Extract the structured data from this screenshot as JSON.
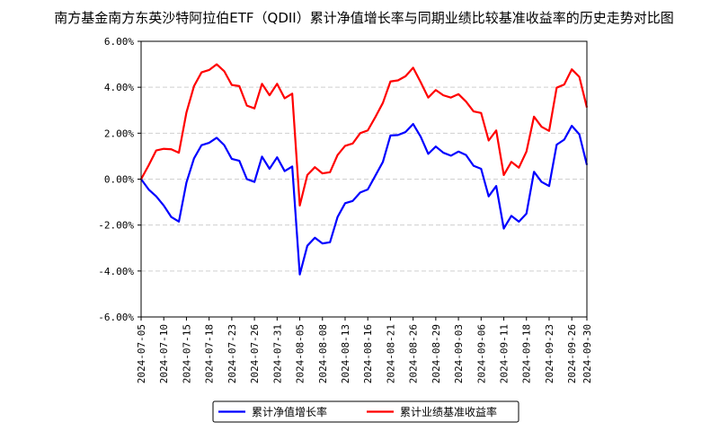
{
  "chart_data": {
    "type": "line",
    "title": "南方基金南方东英沙特阿拉伯ETF（QDII）累计净值增长率与同期业绩比较基准收益率的历史走势对比图",
    "xlabel": "",
    "ylabel": "",
    "ylim": [
      -6,
      6
    ],
    "yticks": [
      -6,
      -4,
      -2,
      0,
      2,
      4,
      6
    ],
    "ytick_labels": [
      "-6.00%",
      "-4.00%",
      "-2.00%",
      "0.00%",
      "2.00%",
      "4.00%",
      "6.00%"
    ],
    "xtick_labels": [
      "2024-07-05",
      "2024-07-10",
      "2024-07-15",
      "2024-07-18",
      "2024-07-23",
      "2024-07-26",
      "2024-07-31",
      "2024-08-05",
      "2024-08-08",
      "2024-08-13",
      "2024-08-16",
      "2024-08-21",
      "2024-08-26",
      "2024-08-29",
      "2024-09-03",
      "2024-09-06",
      "2024-09-11",
      "2024-09-18",
      "2024-09-23",
      "2024-09-26",
      "2024-09-30"
    ],
    "xtick_index": [
      0,
      3,
      6,
      9,
      12,
      15,
      18,
      21,
      24,
      27,
      30,
      33,
      36,
      39,
      42,
      45,
      48,
      51,
      54,
      57,
      59
    ],
    "grid": "horizontal dashed",
    "legend_position": "bottom-center",
    "series": [
      {
        "name": "累计净值增长率",
        "color": "#0000ff",
        "values": [
          0.0,
          -0.45,
          -0.75,
          -1.15,
          -1.65,
          -1.85,
          -0.15,
          0.9,
          1.48,
          1.58,
          1.8,
          1.48,
          0.88,
          0.8,
          0.0,
          -0.12,
          0.98,
          0.45,
          0.95,
          0.35,
          0.55,
          -4.15,
          -2.9,
          -2.55,
          -2.8,
          -2.75,
          -1.65,
          -1.05,
          -0.95,
          -0.58,
          -0.45,
          0.15,
          0.75,
          1.9,
          1.92,
          2.05,
          2.4,
          1.85,
          1.1,
          1.42,
          1.15,
          1.02,
          1.2,
          1.05,
          0.58,
          0.45,
          -0.75,
          -0.3,
          -2.15,
          -1.6,
          -1.85,
          -1.5,
          0.32,
          -0.12,
          -0.3,
          1.5,
          1.72,
          2.32,
          1.95,
          0.62
        ]
      },
      {
        "name": "累计业绩基准收益率",
        "color": "#ff0000",
        "values": [
          0.0,
          0.6,
          1.25,
          1.32,
          1.3,
          1.15,
          2.9,
          4.05,
          4.65,
          4.75,
          5.0,
          4.7,
          4.1,
          4.05,
          3.2,
          3.08,
          4.15,
          3.65,
          4.15,
          3.52,
          3.72,
          -1.15,
          0.18,
          0.52,
          0.25,
          0.3,
          1.05,
          1.45,
          1.55,
          2.0,
          2.12,
          2.7,
          3.32,
          4.25,
          4.3,
          4.48,
          4.85,
          4.22,
          3.55,
          3.88,
          3.65,
          3.55,
          3.7,
          3.38,
          2.95,
          2.88,
          1.68,
          2.12,
          0.18,
          0.75,
          0.5,
          1.2,
          2.72,
          2.28,
          2.1,
          3.98,
          4.12,
          4.78,
          4.45,
          3.12
        ]
      }
    ]
  }
}
